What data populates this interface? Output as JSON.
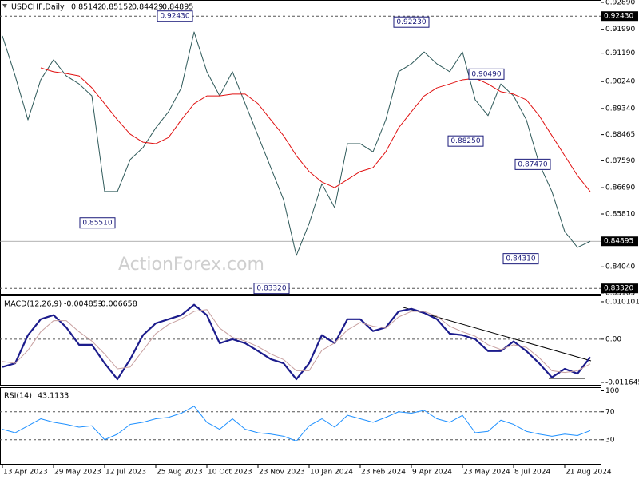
{
  "watermark": "ActionForex.com",
  "chart_data": [
    {
      "type": "line",
      "title": "USDCHF,Daily",
      "quote": {
        "open": 0.85142,
        "high": 0.85152,
        "low": 0.84429,
        "close": 0.84895
      },
      "categories": [
        "13 Apr 2023",
        null,
        null,
        null,
        "29 May 2023",
        null,
        null,
        null,
        "12 Jul 2023",
        null,
        null,
        null,
        "25 Aug 2023",
        null,
        null,
        null,
        "10 Oct 2023",
        null,
        null,
        null,
        "23 Nov 2023",
        null,
        null,
        null,
        "10 Jan 2024",
        null,
        null,
        null,
        "23 Feb 2024",
        null,
        null,
        null,
        "9 Apr 2024",
        null,
        null,
        null,
        "23 May 2024",
        null,
        null,
        null,
        "8 Jul 2024",
        null,
        null,
        null,
        "21 Aug 2024",
        null,
        null
      ],
      "series": [
        {
          "color": "#2f5a5a",
          "width": 1,
          "values": [
            0.9177,
            0.9043,
            0.8896,
            0.903,
            0.9097,
            0.9043,
            0.9016,
            0.8976,
            0.8656,
            0.8656,
            0.8763,
            0.8803,
            0.8869,
            0.8923,
            0.9003,
            0.919,
            0.9057,
            0.8976,
            0.9057,
            0.895,
            0.8843,
            0.8736,
            0.8629,
            0.8442,
            0.8549,
            0.8682,
            0.8602,
            0.8816,
            0.8816,
            0.8789,
            0.8896,
            0.9057,
            0.9083,
            0.9123,
            0.9083,
            0.9057,
            0.9123,
            0.8963,
            0.891,
            0.9016,
            0.8976,
            0.8896,
            0.8749,
            0.8656,
            0.8522,
            0.8469,
            0.84895
          ]
        },
        {
          "color": "#e01010",
          "width": 1,
          "values": [
            null,
            null,
            null,
            0.907,
            0.9057,
            0.9051,
            0.9043,
            0.9003,
            0.895,
            0.8896,
            0.8848,
            0.8821,
            0.8816,
            0.8837,
            0.8896,
            0.895,
            0.8976,
            0.8976,
            0.8982,
            0.8982,
            0.895,
            0.8896,
            0.8843,
            0.8776,
            0.8723,
            0.8688,
            0.8669,
            0.8696,
            0.8723,
            0.8736,
            0.8789,
            0.8869,
            0.8923,
            0.8976,
            0.9003,
            0.9016,
            0.903,
            0.9035,
            0.9016,
            0.899,
            0.8982,
            0.8963,
            0.891,
            0.8843,
            0.8776,
            0.8709,
            0.8656
          ]
        }
      ],
      "ylim": [
        0.83165,
        0.9289
      ],
      "yticks": [
        {
          "value": 0.9289,
          "label": "0.92890"
        },
        {
          "value": 0.9199,
          "label": "0.91990"
        },
        {
          "value": 0.9119,
          "label": "0.91190"
        },
        {
          "value": 0.9024,
          "label": "0.90240"
        },
        {
          "value": 0.8934,
          "label": "0.89340"
        },
        {
          "value": 0.88465,
          "label": "0.88465"
        },
        {
          "value": 0.8759,
          "label": "0.87590"
        },
        {
          "value": 0.8669,
          "label": "0.86690"
        },
        {
          "value": 0.8581,
          "label": "0.85810"
        },
        {
          "value": 0.8404,
          "label": "0.84040"
        },
        {
          "value": 0.83165,
          "label": "0.83165"
        }
      ],
      "levels": [
        {
          "value": 0.9243,
          "label": "0.92430"
        },
        {
          "value": 0.8332,
          "label": "0.83320"
        }
      ],
      "annotations": [
        {
          "value": 0.9243,
          "label": "0.92430"
        },
        {
          "value": 0.8551,
          "label": "0.85510"
        },
        {
          "value": 0.8332,
          "label": "0.83320"
        },
        {
          "value": 0.9223,
          "label": "0.92230"
        },
        {
          "value": 0.9049,
          "label": "0.90490"
        },
        {
          "value": 0.8825,
          "label": "0.88250"
        },
        {
          "value": 0.8747,
          "label": "0.87470"
        },
        {
          "value": 0.8431,
          "label": "0.84310"
        }
      ]
    },
    {
      "type": "line",
      "title": "MACD(12,26,9)",
      "series": [
        {
          "color": "#1c1c8c",
          "width": 2.2,
          "values": [
            -0.0075,
            -0.0065,
            0.0011,
            0.0054,
            0.0065,
            0.0032,
            -0.0015,
            -0.0015,
            -0.0065,
            -0.0108,
            -0.0054,
            0.0011,
            0.0043,
            0.0054,
            0.0065,
            0.0093,
            0.0065,
            -0.0011,
            0.0,
            -0.0011,
            -0.0032,
            -0.0054,
            -0.0065,
            -0.0108,
            -0.0065,
            0.0011,
            -0.0011,
            0.0054,
            0.0054,
            0.0022,
            0.0032,
            0.0075,
            0.0082,
            0.0071,
            0.0054,
            0.0015,
            0.0011,
            0.0,
            -0.0032,
            -0.0032,
            -0.0006,
            -0.0032,
            -0.0065,
            -0.0103,
            -0.008,
            -0.0093,
            -0.004853
          ]
        },
        {
          "color": "#c8a0a0",
          "width": 1,
          "values": [
            -0.006,
            -0.0065,
            -0.003,
            0.002,
            0.005,
            0.005,
            0.002,
            -0.0005,
            -0.004,
            -0.008,
            -0.0075,
            -0.003,
            0.0015,
            0.004,
            0.0055,
            0.0075,
            0.008,
            0.003,
            0.0005,
            -0.0005,
            -0.002,
            -0.004,
            -0.0055,
            -0.0085,
            -0.0085,
            -0.003,
            -0.001,
            0.0025,
            0.0045,
            0.0035,
            0.003,
            0.006,
            0.0075,
            0.0075,
            0.0062,
            0.0035,
            0.002,
            0.0008,
            -0.0015,
            -0.0028,
            -0.0015,
            -0.0022,
            -0.005,
            -0.0085,
            -0.009,
            -0.0085,
            -0.006658
          ]
        }
      ],
      "ylim": [
        -0.0123,
        0.0116
      ],
      "yticks": [
        0.010101,
        {
          "value": 0,
          "label": "0.00"
        },
        -0.011645
      ],
      "levels": [
        0
      ]
    },
    {
      "type": "line",
      "title": "RSI(14)",
      "series": [
        {
          "color": "#1e90ff",
          "width": 1,
          "values": [
            45,
            40,
            50,
            60,
            55,
            52,
            48,
            50,
            30,
            38,
            52,
            55,
            60,
            62,
            68,
            78,
            55,
            45,
            60,
            45,
            40,
            38,
            35,
            28,
            50,
            60,
            48,
            65,
            60,
            55,
            62,
            70,
            68,
            72,
            60,
            55,
            65,
            40,
            42,
            58,
            52,
            42,
            38,
            35,
            38,
            36,
            43.1133
          ]
        }
      ],
      "ylim": [
        -3.4,
        104
      ],
      "yticks": [
        100,
        70,
        30
      ],
      "levels": [
        70,
        30
      ]
    }
  ]
}
